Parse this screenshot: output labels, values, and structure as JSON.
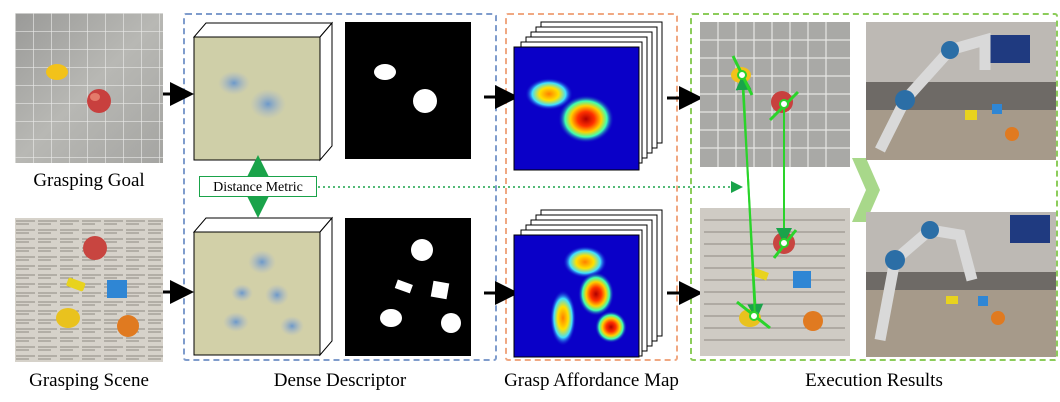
{
  "labels": {
    "grasping_goal": "Grasping Goal",
    "grasping_scene": "Grasping Scene",
    "dense_descriptor": "Dense Descriptor",
    "grasp_affordance_map": "Grasp Affordance Map",
    "execution_results": "Execution Results",
    "distance_metric": "Distance Metric"
  },
  "colors": {
    "descriptor_box": "#7f9ccc",
    "affordance_box": "#f0a882",
    "execution_box": "#8ccc5a",
    "metric_green": "#1aa34a",
    "arrow_black": "#000000",
    "heat_blue": "#0a00c8"
  }
}
